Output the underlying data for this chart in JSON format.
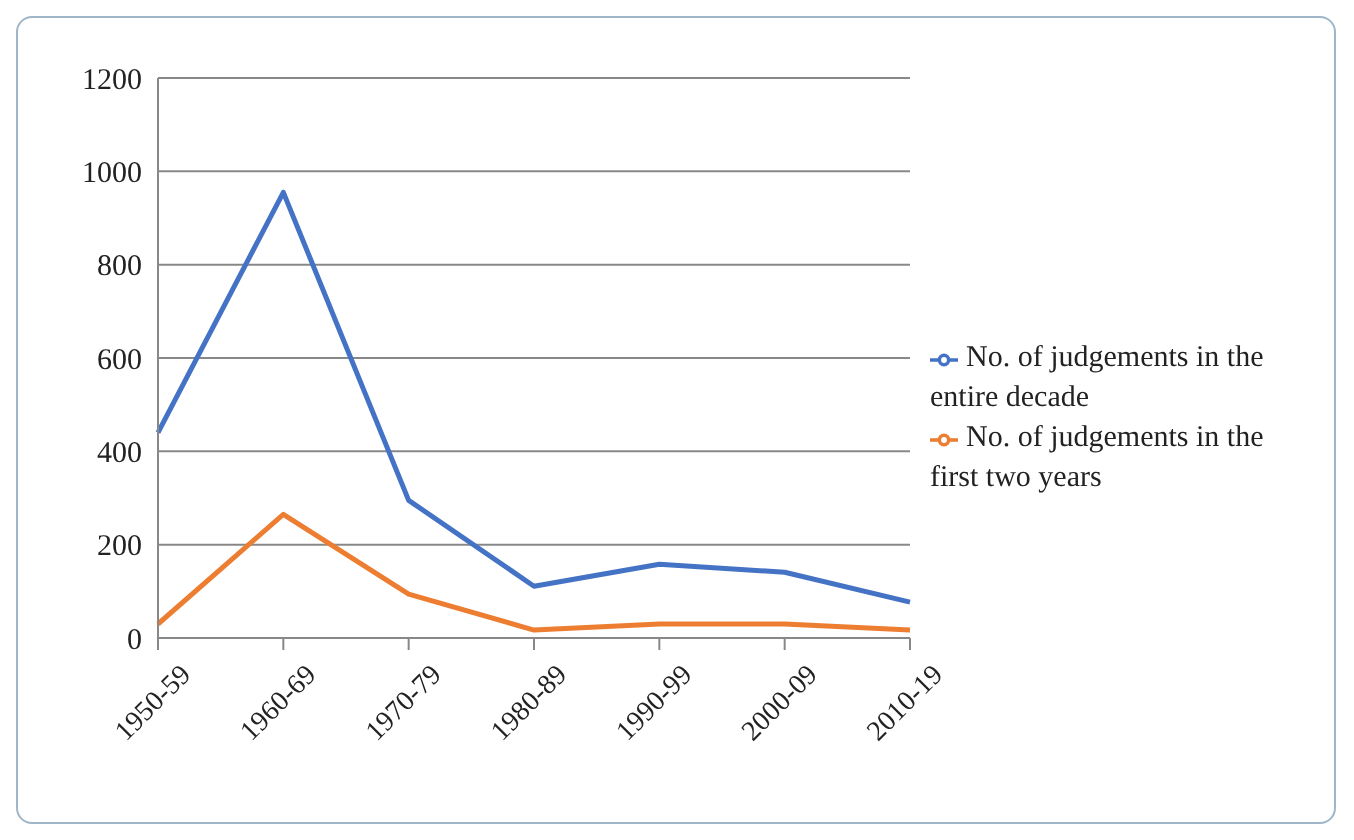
{
  "chart_data": {
    "type": "line",
    "categories": [
      "1950-59",
      "1960-69",
      "1970-79",
      "1980-89",
      "1990-99",
      "2000-09",
      "2010-19"
    ],
    "series": [
      {
        "name": "No. of judgements in the entire decade",
        "color": "#4472c4",
        "values": [
          440,
          955,
          295,
          111,
          158,
          141,
          77
        ]
      },
      {
        "name": "No. of judgements in the first two years",
        "color": "#ed7d31",
        "values": [
          30,
          265,
          94,
          17,
          30,
          30,
          17
        ]
      }
    ],
    "ylim": [
      0,
      1200
    ],
    "yticks": [
      0,
      200,
      400,
      600,
      800,
      1000,
      1200
    ],
    "grid": "y",
    "legend": "right",
    "marker": "none",
    "line_style": "solid"
  }
}
